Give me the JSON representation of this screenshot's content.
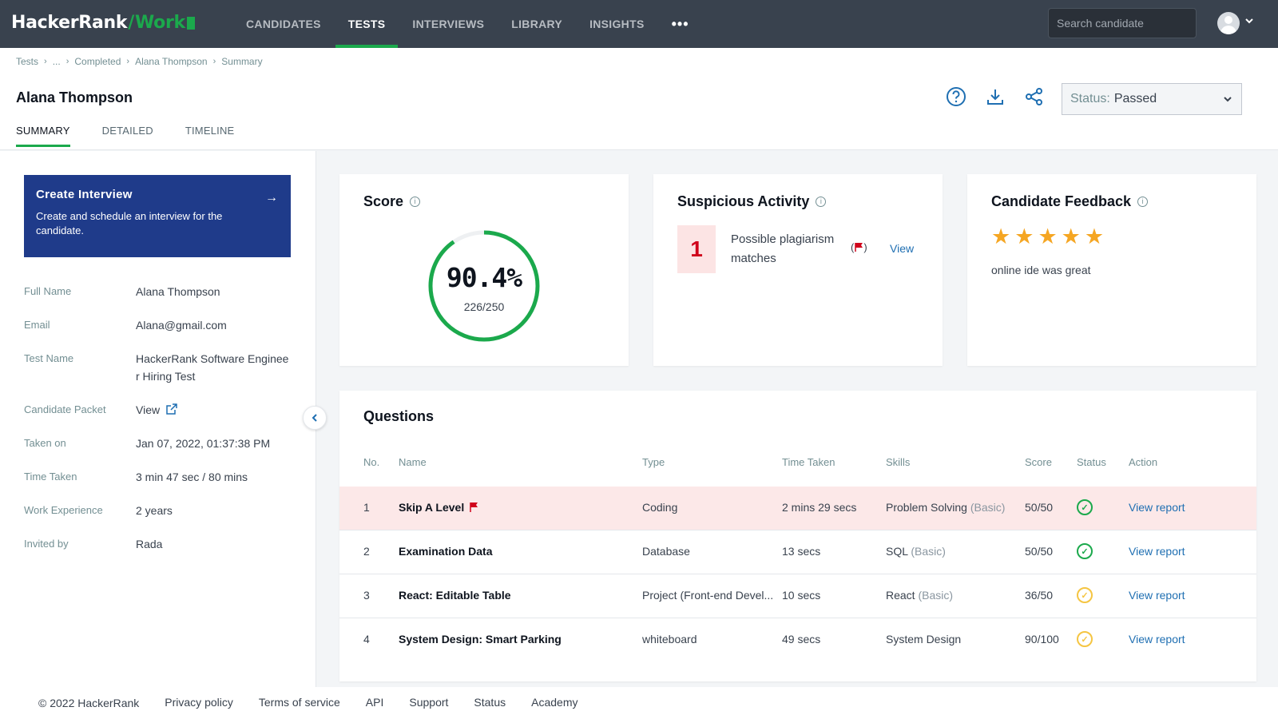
{
  "nav": {
    "logo_main": "HackerRank",
    "logo_work": "Work",
    "items": [
      "CANDIDATES",
      "TESTS",
      "INTERVIEWS",
      "LIBRARY",
      "INSIGHTS"
    ],
    "more": "•••",
    "search_placeholder": "Search candidate"
  },
  "breadcrumb": [
    "Tests",
    "...",
    "Completed",
    "Alana Thompson",
    "Summary"
  ],
  "header": {
    "name": "Alana Thompson",
    "tabs": [
      "SUMMARY",
      "DETAILED",
      "TIMELINE"
    ],
    "status_label": "Status:",
    "status_value": "Passed"
  },
  "create_interview": {
    "title": "Create Interview",
    "description": "Create and schedule an interview for the candidate."
  },
  "candidate_info": [
    {
      "key": "Full Name",
      "value": "Alana Thompson"
    },
    {
      "key": "Email",
      "value": "Alana@gmail.com"
    },
    {
      "key": "Test Name",
      "value": "HackerRank Software Engineer Hiring Test"
    },
    {
      "key": "Candidate Packet",
      "value": "View"
    },
    {
      "key": "Taken on",
      "value": "Jan 07, 2022, 01:37:38 PM"
    },
    {
      "key": "Time Taken",
      "value": "3 min 47 sec / 80 mins"
    },
    {
      "key": "Work Experience",
      "value": "2 years"
    },
    {
      "key": "Invited by",
      "value": "Rada"
    }
  ],
  "score": {
    "title": "Score",
    "percent_text": "90.4%",
    "fraction_text": "226/250",
    "fraction": 0.904
  },
  "suspicious": {
    "title": "Suspicious Activity",
    "count": "1",
    "text": "Possible plagiarism matches",
    "view": "View"
  },
  "feedback": {
    "title": "Candidate Feedback",
    "rating": 5,
    "max_rating": 5,
    "comment": "online ide was great"
  },
  "questions": {
    "title": "Questions",
    "columns": [
      "No.",
      "Name",
      "Type",
      "Time Taken",
      "Skills",
      "Score",
      "Status",
      "Action"
    ],
    "rows": [
      {
        "no": "1",
        "name": "Skip A Level",
        "type": "Coding",
        "time": "2 mins 29 secs",
        "skill": "Problem Solving",
        "level": "(Basic)",
        "score": "50/50",
        "status": "full",
        "action": "View report"
      },
      {
        "no": "2",
        "name": "Examination Data",
        "type": "Database",
        "time": "13 secs",
        "skill": "SQL",
        "level": "(Basic)",
        "score": "50/50",
        "status": "full",
        "action": "View report"
      },
      {
        "no": "3",
        "name": "React: Editable Table",
        "type": "Project (Front-end Devel...",
        "time": "10 secs",
        "skill": "React",
        "level": "(Basic)",
        "score": "36/50",
        "status": "partial",
        "action": "View report"
      },
      {
        "no": "4",
        "name": "System Design: Smart Parking",
        "type": "whiteboard",
        "time": "49 secs",
        "skill": "System Design",
        "level": "",
        "score": "90/100",
        "status": "partial",
        "action": "View report"
      }
    ]
  },
  "footer": {
    "items": [
      "© 2022 HackerRank",
      "Privacy policy",
      "Terms of service",
      "API",
      "Support",
      "Status",
      "Academy"
    ]
  },
  "colors": {
    "nav_bg": "#39424e",
    "accent_green": "#1ba94c",
    "link_blue": "#1f6fb2",
    "card_blue": "#1f3b8a",
    "star": "#f5a623",
    "flag_red": "#d0021b"
  }
}
